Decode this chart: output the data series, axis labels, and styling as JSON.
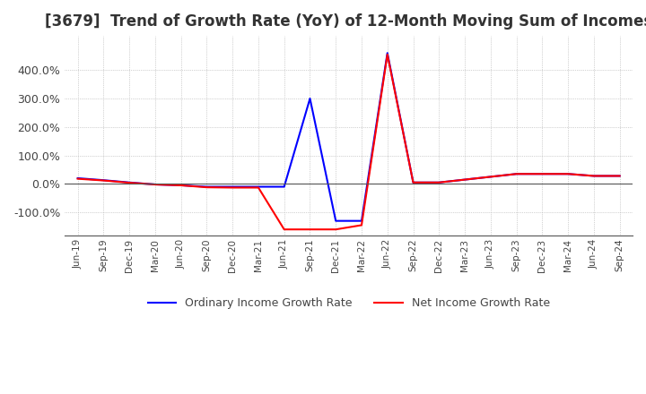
{
  "title": "[3679]  Trend of Growth Rate (YoY) of 12-Month Moving Sum of Incomes",
  "title_fontsize": 12,
  "background_color": "#ffffff",
  "grid_color": "#aaaaaa",
  "xlabels": [
    "Jun-19",
    "Sep-19",
    "Dec-19",
    "Mar-20",
    "Jun-20",
    "Sep-20",
    "Dec-20",
    "Mar-21",
    "Jun-21",
    "Sep-21",
    "Dec-21",
    "Mar-22",
    "Jun-22",
    "Sep-22",
    "Dec-22",
    "Mar-23",
    "Jun-23",
    "Sep-23",
    "Dec-23",
    "Mar-24",
    "Jun-24",
    "Sep-24"
  ],
  "ordinary_income_growth": [
    0.2,
    0.13,
    0.05,
    -0.02,
    -0.05,
    -0.1,
    -0.1,
    -0.1,
    -0.1,
    3.0,
    -1.3,
    -1.3,
    4.6,
    0.05,
    0.05,
    0.15,
    0.25,
    0.35,
    0.35,
    0.35,
    0.28,
    0.28
  ],
  "net_income_growth": [
    0.18,
    0.12,
    0.04,
    -0.02,
    -0.05,
    -0.12,
    -0.13,
    -0.13,
    -1.6,
    -1.6,
    -1.6,
    -1.45,
    4.55,
    0.05,
    0.05,
    0.15,
    0.25,
    0.35,
    0.35,
    0.35,
    0.28,
    0.28
  ],
  "ordinary_color": "#0000ff",
  "net_color": "#ff0000",
  "ylim": [
    -1.8,
    5.2
  ],
  "yticks": [
    -1.0,
    0.0,
    1.0,
    2.0,
    3.0,
    4.0
  ],
  "ytick_labels": [
    "-100.0%",
    "0.0%",
    "100.0%",
    "200.0%",
    "300.0%",
    "400.0%"
  ],
  "legend_labels": [
    "Ordinary Income Growth Rate",
    "Net Income Growth Rate"
  ]
}
